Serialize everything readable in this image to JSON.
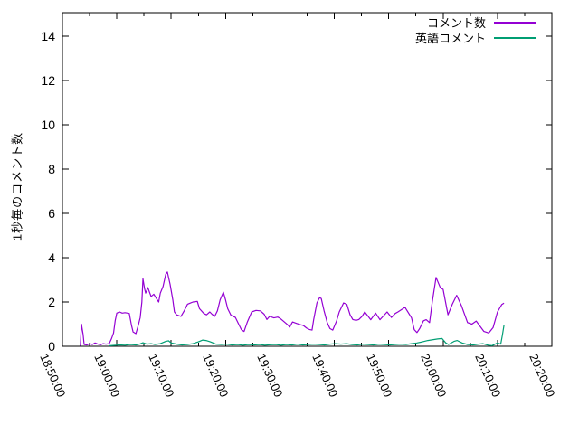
{
  "chart_data": {
    "type": "line",
    "title": "",
    "xlabel": "",
    "ylabel": "1秒毎のコメント数",
    "x_axis": {
      "tick_labels": [
        "18:50:00",
        "19:00:00",
        "19:10:00",
        "19:20:00",
        "19:30:00",
        "19:40:00",
        "19:50:00",
        "20:00:00",
        "20:10:00",
        "20:20:00"
      ],
      "major_tick_interval_minutes": 10,
      "minor_tick_interval_minutes": 5,
      "range_minutes_from_start": [
        0,
        90
      ],
      "labels_rotated": true
    },
    "y_axis": {
      "tick_labels": [
        "0",
        "2",
        "4",
        "6",
        "8",
        "10",
        "12",
        "14"
      ],
      "tick_values": [
        0,
        2,
        4,
        6,
        8,
        10,
        12,
        14
      ],
      "range": [
        0,
        15
      ]
    },
    "grid": false,
    "legend_position": "top-right-inside",
    "background_color": "#ffffff",
    "border_color": "#000000",
    "series": [
      {
        "name": "コメント数",
        "color": "#9400d3",
        "x_unit": "minutes_after_18:50:00",
        "points": [
          [
            3.3,
            0.02
          ],
          [
            3.5,
            1.0
          ],
          [
            3.8,
            0.55
          ],
          [
            4.0,
            0.08
          ],
          [
            4.5,
            0.06
          ],
          [
            5.0,
            0.12
          ],
          [
            5.5,
            0.08
          ],
          [
            6.0,
            0.15
          ],
          [
            6.5,
            0.1
          ],
          [
            7.0,
            0.07
          ],
          [
            7.5,
            0.12
          ],
          [
            8.0,
            0.1
          ],
          [
            8.6,
            0.12
          ],
          [
            9.0,
            0.33
          ],
          [
            9.4,
            0.6
          ],
          [
            9.7,
            1.15
          ],
          [
            10.0,
            1.5
          ],
          [
            10.5,
            1.55
          ],
          [
            11.0,
            1.5
          ],
          [
            11.5,
            1.52
          ],
          [
            12.0,
            1.5
          ],
          [
            12.3,
            1.48
          ],
          [
            12.7,
            0.95
          ],
          [
            13.0,
            0.65
          ],
          [
            13.5,
            0.57
          ],
          [
            14.0,
            1.0
          ],
          [
            14.3,
            1.3
          ],
          [
            14.6,
            2.0
          ],
          [
            14.8,
            3.05
          ],
          [
            15.1,
            2.6
          ],
          [
            15.3,
            2.4
          ],
          [
            15.7,
            2.65
          ],
          [
            16.3,
            2.25
          ],
          [
            16.8,
            2.35
          ],
          [
            17.3,
            2.15
          ],
          [
            17.7,
            2.0
          ],
          [
            18.0,
            2.4
          ],
          [
            18.5,
            2.7
          ],
          [
            19.0,
            3.25
          ],
          [
            19.3,
            3.35
          ],
          [
            19.8,
            2.8
          ],
          [
            20.3,
            2.1
          ],
          [
            20.6,
            1.55
          ],
          [
            21.0,
            1.42
          ],
          [
            21.8,
            1.35
          ],
          [
            22.4,
            1.6
          ],
          [
            23.0,
            1.9
          ],
          [
            23.5,
            1.95
          ],
          [
            24.0,
            2.0
          ],
          [
            24.8,
            2.03
          ],
          [
            25.2,
            1.7
          ],
          [
            26.0,
            1.48
          ],
          [
            26.5,
            1.42
          ],
          [
            27.1,
            1.55
          ],
          [
            27.5,
            1.45
          ],
          [
            28.0,
            1.35
          ],
          [
            28.5,
            1.6
          ],
          [
            29.0,
            2.1
          ],
          [
            29.6,
            2.44
          ],
          [
            30.0,
            2.1
          ],
          [
            30.4,
            1.7
          ],
          [
            31.0,
            1.4
          ],
          [
            31.8,
            1.3
          ],
          [
            32.4,
            1.0
          ],
          [
            32.9,
            0.75
          ],
          [
            33.4,
            0.67
          ],
          [
            34.0,
            1.1
          ],
          [
            34.8,
            1.55
          ],
          [
            35.6,
            1.62
          ],
          [
            36.4,
            1.6
          ],
          [
            37.1,
            1.45
          ],
          [
            37.6,
            1.21
          ],
          [
            38.1,
            1.35
          ],
          [
            38.9,
            1.28
          ],
          [
            39.6,
            1.32
          ],
          [
            40.1,
            1.25
          ],
          [
            40.6,
            1.14
          ],
          [
            41.4,
            0.97
          ],
          [
            41.8,
            0.87
          ],
          [
            42.3,
            1.1
          ],
          [
            43.1,
            1.03
          ],
          [
            43.8,
            0.97
          ],
          [
            44.3,
            0.94
          ],
          [
            44.9,
            0.82
          ],
          [
            45.4,
            0.76
          ],
          [
            45.9,
            0.73
          ],
          [
            46.2,
            1.2
          ],
          [
            46.8,
            1.96
          ],
          [
            47.3,
            2.2
          ],
          [
            47.6,
            2.16
          ],
          [
            48.1,
            1.62
          ],
          [
            48.7,
            1.07
          ],
          [
            49.2,
            0.8
          ],
          [
            49.7,
            0.73
          ],
          [
            50.4,
            1.14
          ],
          [
            50.9,
            1.55
          ],
          [
            51.7,
            1.96
          ],
          [
            52.3,
            1.89
          ],
          [
            52.9,
            1.42
          ],
          [
            53.4,
            1.21
          ],
          [
            54.0,
            1.17
          ],
          [
            54.5,
            1.21
          ],
          [
            55.1,
            1.35
          ],
          [
            55.6,
            1.55
          ],
          [
            56.7,
            1.2
          ],
          [
            57.6,
            1.5
          ],
          [
            58.4,
            1.2
          ],
          [
            59.7,
            1.55
          ],
          [
            60.5,
            1.3
          ],
          [
            61.2,
            1.48
          ],
          [
            61.7,
            1.55
          ],
          [
            63.0,
            1.76
          ],
          [
            64.2,
            1.28
          ],
          [
            64.7,
            0.75
          ],
          [
            65.2,
            0.62
          ],
          [
            65.7,
            0.8
          ],
          [
            66.4,
            1.15
          ],
          [
            66.9,
            1.2
          ],
          [
            67.5,
            1.07
          ],
          [
            68.0,
            2.0
          ],
          [
            68.7,
            3.11
          ],
          [
            69.5,
            2.64
          ],
          [
            70.0,
            2.57
          ],
          [
            70.9,
            1.42
          ],
          [
            71.7,
            1.9
          ],
          [
            72.5,
            2.3
          ],
          [
            73.4,
            1.82
          ],
          [
            74.5,
            1.07
          ],
          [
            75.3,
            1.0
          ],
          [
            76.1,
            1.14
          ],
          [
            77.5,
            0.67
          ],
          [
            78.4,
            0.6
          ],
          [
            79.2,
            0.85
          ],
          [
            80.0,
            1.55
          ],
          [
            80.8,
            1.89
          ],
          [
            81.2,
            1.95
          ]
        ]
      },
      {
        "name": "英語コメント",
        "color": "#009e73",
        "x_unit": "minutes_after_18:50:00",
        "points": [
          [
            8.5,
            0.02
          ],
          [
            9.5,
            0.04
          ],
          [
            10.5,
            0.06
          ],
          [
            11.5,
            0.05
          ],
          [
            12.5,
            0.08
          ],
          [
            13.5,
            0.06
          ],
          [
            14.2,
            0.1
          ],
          [
            14.8,
            0.16
          ],
          [
            15.5,
            0.1
          ],
          [
            16.3,
            0.12
          ],
          [
            17.0,
            0.08
          ],
          [
            18.0,
            0.12
          ],
          [
            19.0,
            0.22
          ],
          [
            19.5,
            0.25
          ],
          [
            20.0,
            0.15
          ],
          [
            21.0,
            0.1
          ],
          [
            22.0,
            0.06
          ],
          [
            23.0,
            0.08
          ],
          [
            24.0,
            0.12
          ],
          [
            25.0,
            0.2
          ],
          [
            25.8,
            0.28
          ],
          [
            26.4,
            0.26
          ],
          [
            27.2,
            0.2
          ],
          [
            28.2,
            0.1
          ],
          [
            29.2,
            0.08
          ],
          [
            30.2,
            0.1
          ],
          [
            31.2,
            0.06
          ],
          [
            32.2,
            0.08
          ],
          [
            33.2,
            0.05
          ],
          [
            34.2,
            0.08
          ],
          [
            35.2,
            0.06
          ],
          [
            36.2,
            0.08
          ],
          [
            37.2,
            0.05
          ],
          [
            38.2,
            0.07
          ],
          [
            39.2,
            0.08
          ],
          [
            40.2,
            0.05
          ],
          [
            41.2,
            0.08
          ],
          [
            42.2,
            0.06
          ],
          [
            43.2,
            0.1
          ],
          [
            44.2,
            0.06
          ],
          [
            45.2,
            0.08
          ],
          [
            46.2,
            0.1
          ],
          [
            47.2,
            0.08
          ],
          [
            48.2,
            0.06
          ],
          [
            49.2,
            0.1
          ],
          [
            50.2,
            0.12
          ],
          [
            51.2,
            0.1
          ],
          [
            52.2,
            0.12
          ],
          [
            53.2,
            0.08
          ],
          [
            54.2,
            0.06
          ],
          [
            55.2,
            0.1
          ],
          [
            56.2,
            0.08
          ],
          [
            57.2,
            0.06
          ],
          [
            58.2,
            0.1
          ],
          [
            59.2,
            0.08
          ],
          [
            60.2,
            0.06
          ],
          [
            61.2,
            0.08
          ],
          [
            62.2,
            0.1
          ],
          [
            63.2,
            0.08
          ],
          [
            64.2,
            0.12
          ],
          [
            65.2,
            0.15
          ],
          [
            66.2,
            0.2
          ],
          [
            67.2,
            0.26
          ],
          [
            68.2,
            0.3
          ],
          [
            69.0,
            0.33
          ],
          [
            69.8,
            0.35
          ],
          [
            70.5,
            0.15
          ],
          [
            71.0,
            0.08
          ],
          [
            72.0,
            0.22
          ],
          [
            72.6,
            0.26
          ],
          [
            73.5,
            0.15
          ],
          [
            74.5,
            0.08
          ],
          [
            75.5,
            0.06
          ],
          [
            76.5,
            0.1
          ],
          [
            77.3,
            0.12
          ],
          [
            78.3,
            0.05
          ],
          [
            79.0,
            0.03
          ],
          [
            80.0,
            0.15
          ],
          [
            80.6,
            0.1
          ],
          [
            80.9,
            0.5
          ],
          [
            81.2,
            0.95
          ]
        ]
      }
    ]
  }
}
